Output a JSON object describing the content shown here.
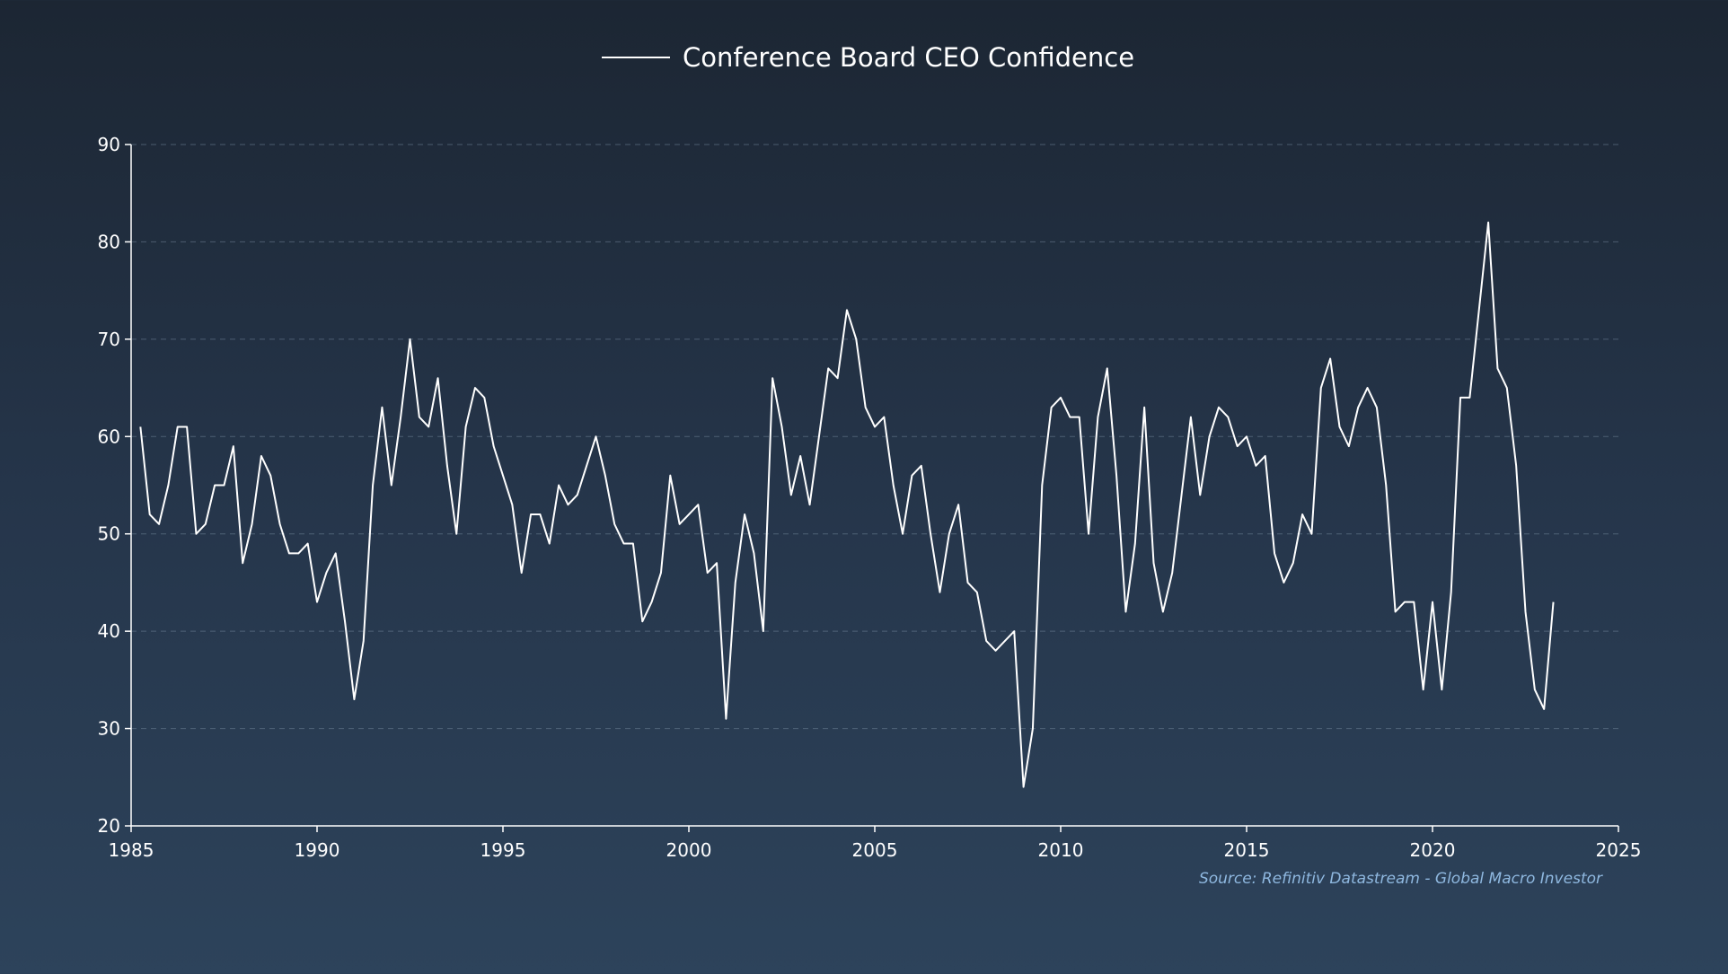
{
  "chart_data": {
    "type": "line",
    "legend_position": "top-center",
    "grid": true,
    "xlim": [
      1985,
      2025
    ],
    "ylim": [
      20,
      90
    ],
    "x_ticks": [
      1985,
      1990,
      1995,
      2000,
      2005,
      2010,
      2015,
      2020,
      2025
    ],
    "y_ticks": [
      20,
      30,
      40,
      50,
      60,
      70,
      80,
      90
    ],
    "source": "Source: Refinitiv Datastream - Global Macro Investor",
    "colors": {
      "series": "#ffffff",
      "source": "#8fb8e0"
    },
    "series": [
      {
        "name": "Conference Board CEO Confidence",
        "values": [
          61,
          52,
          51,
          55,
          61,
          61,
          50,
          51,
          55,
          55,
          59,
          47,
          51,
          58,
          56,
          51,
          48,
          48,
          49,
          43,
          46,
          48,
          41,
          33,
          39,
          55,
          63,
          55,
          62,
          70,
          62,
          61,
          66,
          57,
          50,
          61,
          65,
          64,
          59,
          56,
          53,
          46,
          52,
          52,
          49,
          55,
          53,
          54,
          57,
          60,
          56,
          51,
          49,
          49,
          41,
          43,
          46,
          56,
          51,
          52,
          53,
          46,
          47,
          31,
          45,
          52,
          48,
          40,
          66,
          61,
          54,
          58,
          53,
          60,
          67,
          66,
          73,
          70,
          63,
          61,
          62,
          55,
          50,
          56,
          57,
          50,
          44,
          50,
          53,
          45,
          44,
          39,
          38,
          39,
          40,
          24,
          30,
          55,
          63,
          64,
          62,
          62,
          50,
          62,
          67,
          56,
          42,
          49,
          63,
          47,
          42,
          46,
          54,
          62,
          54,
          60,
          63,
          62,
          59,
          60,
          57,
          58,
          48,
          45,
          47,
          52,
          50,
          65,
          68,
          61,
          59,
          63,
          65,
          63,
          55,
          42,
          43,
          43,
          34,
          43,
          34,
          44,
          64,
          64,
          73,
          82,
          67,
          65,
          57,
          42,
          34,
          32,
          43
        ]
      }
    ]
  }
}
